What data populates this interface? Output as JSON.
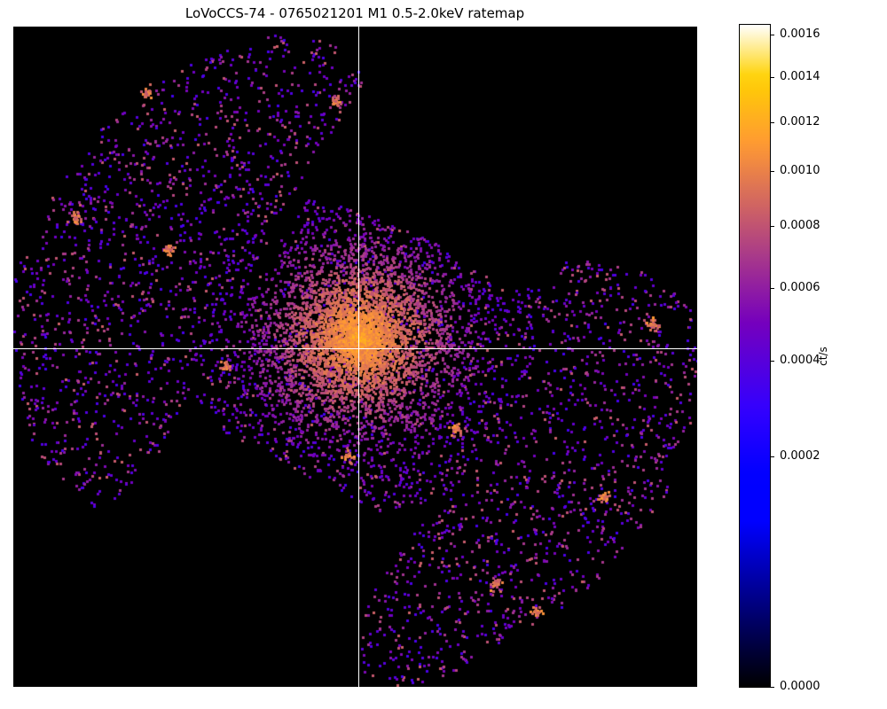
{
  "chart_data": {
    "type": "heatmap",
    "title": "LoVoCCS-74 - 0765021201 M1 0.5-2.0keV ratemap",
    "colormap": "gnuplot2",
    "colorbar": {
      "label": "ct/s",
      "label_numerator": "ct",
      "label_denominator": "s",
      "scale": "power-norm",
      "vmin": 0.0,
      "vmax": 0.00165,
      "ticks": [
        {
          "value": 0.0016,
          "label": "0.0016"
        },
        {
          "value": 0.0014,
          "label": "0.0014"
        },
        {
          "value": 0.0012,
          "label": "0.0012"
        },
        {
          "value": 0.001,
          "label": "0.0010"
        },
        {
          "value": 0.0008,
          "label": "0.0008"
        },
        {
          "value": 0.0006,
          "label": "0.0006"
        },
        {
          "value": 0.0004,
          "label": "0.0004"
        },
        {
          "value": 0.0002,
          "label": "0.0002"
        },
        {
          "value": 0.0,
          "label": "0.0000"
        }
      ]
    },
    "axes_visible": false,
    "crosshair": true,
    "features": [
      "diffuse cluster emission peaked near the crosshair center",
      "point sources scattered across the field",
      "irregular mosaic footprint with black (zero) outside exposure"
    ]
  }
}
